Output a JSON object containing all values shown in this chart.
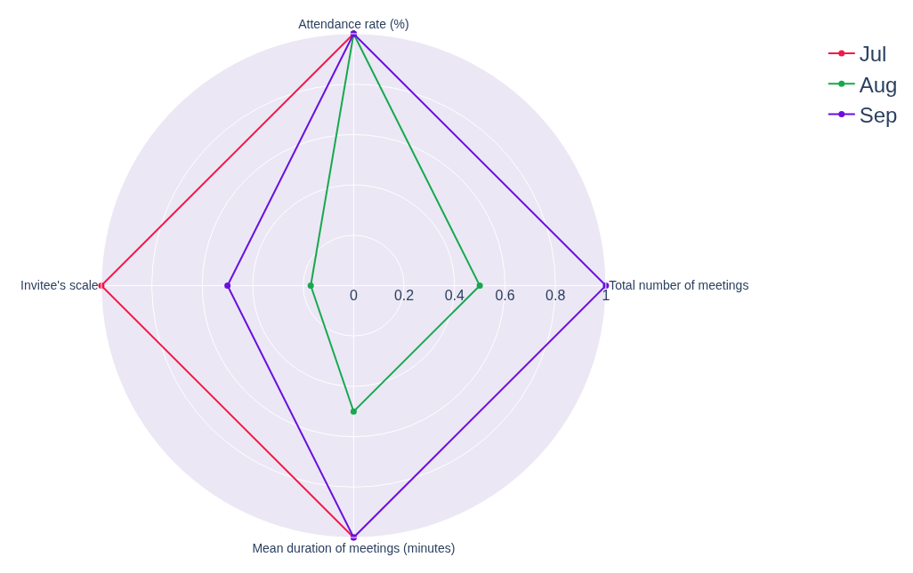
{
  "chart_data": {
    "type": "radar",
    "categories": [
      "Attendance rate (%)",
      "Total number of meetings",
      "Mean duration of meetings (minutes)",
      "Invitee's scale"
    ],
    "series": [
      {
        "name": "Jul",
        "color": "#f0194a",
        "values": [
          1,
          null,
          1,
          1
        ]
      },
      {
        "name": "Aug",
        "color": "#17a84f",
        "values": [
          1,
          0.5,
          0.5,
          0.17
        ]
      },
      {
        "name": "Sep",
        "color": "#6a0fe0",
        "values": [
          1,
          1,
          1,
          0.5
        ]
      }
    ],
    "ylim": [
      0,
      1
    ],
    "yticks": [
      0,
      0.2,
      0.4,
      0.6,
      0.8,
      1
    ],
    "grid": true,
    "legend": "top right",
    "marker": "circle",
    "line_style": "solid"
  }
}
